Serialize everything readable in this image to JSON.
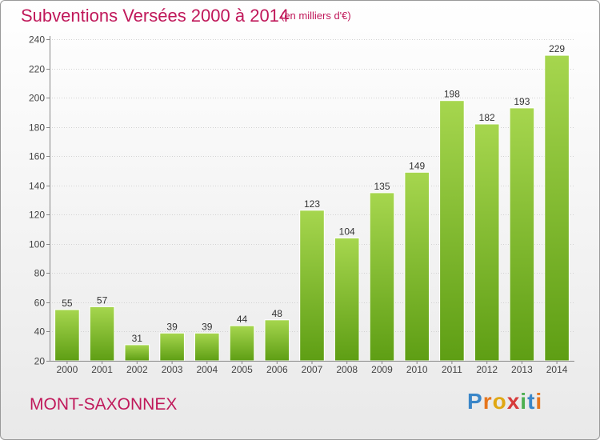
{
  "header": {
    "title": "Subventions Versées 2000 à 2014",
    "subtitle": "(en milliers d'€)"
  },
  "footer": {
    "commune": "MONT-SAXONNEX",
    "logo": {
      "letters": [
        "P",
        "r",
        "o",
        "x",
        "i",
        "t",
        "i"
      ],
      "colors": [
        "#3a86c8",
        "#e6761d",
        "#e0a814",
        "#d63b3b",
        "#4caf50",
        "#3a86c8",
        "#e6761d"
      ]
    }
  },
  "chart_data": {
    "type": "bar",
    "categories": [
      "2000",
      "2001",
      "2002",
      "2003",
      "2004",
      "2005",
      "2006",
      "2007",
      "2008",
      "2009",
      "2010",
      "2011",
      "2012",
      "2013",
      "2014"
    ],
    "values": [
      55,
      57,
      31,
      39,
      39,
      44,
      48,
      123,
      104,
      135,
      149,
      198,
      182,
      193,
      229
    ],
    "data_labels": [
      "55",
      "57",
      "31",
      "39",
      "39",
      "44",
      "48",
      "123",
      "104",
      "135",
      "149",
      "198",
      "182",
      "193",
      "229"
    ],
    "ylim": [
      20,
      240
    ],
    "yticks": [
      20,
      40,
      60,
      80,
      100,
      120,
      140,
      160,
      180,
      200,
      220,
      240
    ],
    "ytick_labels": [
      "20",
      "40",
      "60",
      "80",
      "100",
      "120",
      "140",
      "160",
      "180",
      "200",
      "220",
      "240"
    ],
    "grid": true,
    "bar_color_top": "#a6d64e",
    "bar_color_bottom": "#5e9e14"
  }
}
